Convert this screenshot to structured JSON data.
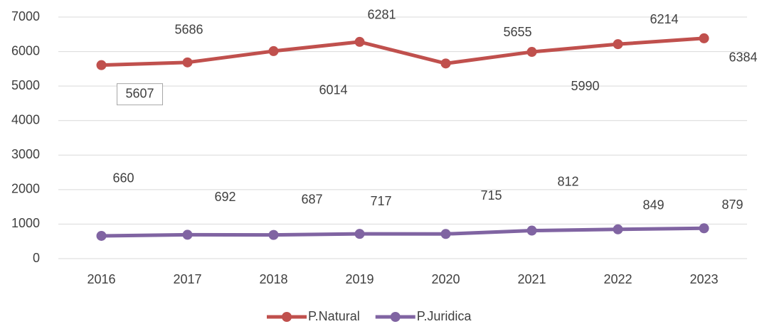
{
  "chart_data": {
    "type": "line",
    "categories": [
      "2016",
      "2017",
      "2018",
      "2019",
      "2020",
      "2021",
      "2022",
      "2023"
    ],
    "series": [
      {
        "name": "P.Natural",
        "color": "#c0504d",
        "values": [
          5607,
          5686,
          6014,
          6281,
          5655,
          5990,
          6214,
          6384
        ]
      },
      {
        "name": "P.Juridica",
        "color": "#8064a2",
        "values": [
          660,
          692,
          687,
          717,
          715,
          812,
          849,
          879
        ]
      }
    ],
    "ylim": [
      0,
      7000
    ],
    "yticks": [
      0,
      1000,
      2000,
      3000,
      4000,
      5000,
      6000,
      7000
    ],
    "grid": true,
    "legend": "bottom"
  }
}
